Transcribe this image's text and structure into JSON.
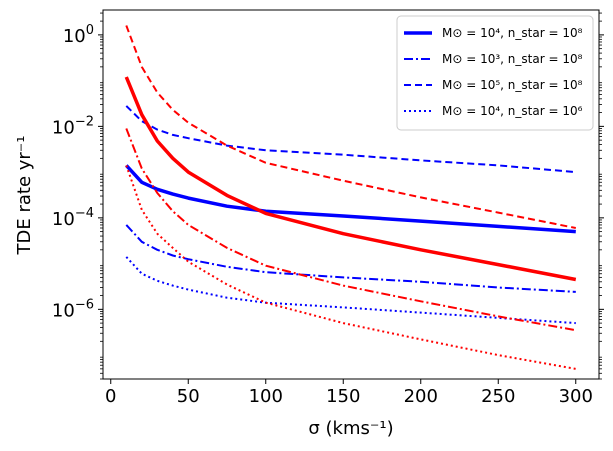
{
  "chart_data": {
    "type": "line",
    "title": "",
    "xlabel": "σ (kms⁻¹)",
    "ylabel": "TDE rate  yr⁻¹",
    "xlim": [
      -5,
      315
    ],
    "ylim": [
      3e-08,
      3.5
    ],
    "yscale": "log",
    "x_ticks": [
      0,
      50,
      100,
      150,
      200,
      250,
      300
    ],
    "x_tick_labels": [
      "0",
      "50",
      "100",
      "150",
      "200",
      "250",
      "300"
    ],
    "y_ticks": [
      1,
      0.01,
      0.0001,
      1e-06
    ],
    "y_tick_labels": [
      {
        "base": "10",
        "exp": "0"
      },
      {
        "base": "10",
        "exp": "−2"
      },
      {
        "base": "10",
        "exp": "−4"
      },
      {
        "base": "10",
        "exp": "−6"
      }
    ],
    "legend_position": "upper-right",
    "series": [
      {
        "name": "M⊙ = 10⁴, n_star = 10⁸",
        "color": "#0000ff",
        "style": "solid",
        "width": 3.5,
        "in_legend": true,
        "x": [
          10,
          20,
          30,
          40,
          50,
          75,
          100,
          150,
          200,
          250,
          300
        ],
        "y": [
          0.0014,
          0.0006,
          0.00042,
          0.00033,
          0.00027,
          0.00018,
          0.00014,
          0.00011,
          8.5e-05,
          6.5e-05,
          5e-05
        ]
      },
      {
        "name": "M⊙ = 10³, n_star = 10⁸",
        "color": "#0000ff",
        "style": "dashdot",
        "width": 2,
        "in_legend": true,
        "x": [
          10,
          20,
          30,
          40,
          50,
          75,
          100,
          150,
          200,
          250,
          300
        ],
        "y": [
          7e-05,
          3e-05,
          2e-05,
          1.5e-05,
          1.25e-05,
          8.5e-06,
          6.5e-06,
          5e-06,
          4e-06,
          3e-06,
          2.4e-06
        ]
      },
      {
        "name": "M⊙ = 10⁵, n_star = 10⁸",
        "color": "#0000ff",
        "style": "dashed",
        "width": 2,
        "in_legend": true,
        "x": [
          10,
          20,
          30,
          40,
          50,
          75,
          100,
          150,
          200,
          250,
          300
        ],
        "y": [
          0.028,
          0.013,
          0.0085,
          0.0065,
          0.0055,
          0.0038,
          0.003,
          0.0024,
          0.0018,
          0.0014,
          0.001
        ]
      },
      {
        "name": "M⊙ = 10⁴, n_star = 10⁶",
        "color": "#0000ff",
        "style": "dotted",
        "width": 2,
        "in_legend": true,
        "x": [
          10,
          20,
          30,
          40,
          50,
          75,
          100,
          150,
          200,
          250,
          300
        ],
        "y": [
          1.4e-05,
          6e-06,
          4.2e-06,
          3.3e-06,
          2.7e-06,
          1.8e-06,
          1.4e-06,
          1.1e-06,
          8.5e-07,
          6.5e-07,
          5e-07
        ]
      },
      {
        "name": "red solid",
        "color": "#ff0000",
        "style": "solid",
        "width": 3.5,
        "in_legend": false,
        "x": [
          10,
          20,
          30,
          40,
          50,
          75,
          100,
          150,
          200,
          250,
          300
        ],
        "y": [
          0.12,
          0.018,
          0.0048,
          0.002,
          0.001,
          0.00031,
          0.000125,
          4.5e-05,
          2e-05,
          9.5e-06,
          4.5e-06
        ]
      },
      {
        "name": "red dashdot",
        "color": "#ff0000",
        "style": "dashdot",
        "width": 2,
        "in_legend": false,
        "x": [
          10,
          20,
          30,
          40,
          50,
          75,
          100,
          150,
          200,
          250,
          300
        ],
        "y": [
          0.009,
          0.0012,
          0.00035,
          0.00014,
          7e-05,
          2.2e-05,
          9e-06,
          3.3e-06,
          1.5e-06,
          7e-07,
          3.5e-07
        ]
      },
      {
        "name": "red dashed",
        "color": "#ff0000",
        "style": "dashed",
        "width": 2,
        "in_legend": false,
        "x": [
          10,
          20,
          30,
          40,
          50,
          75,
          100,
          150,
          200,
          250,
          300
        ],
        "y": [
          1.6,
          0.2,
          0.055,
          0.023,
          0.012,
          0.0038,
          0.0016,
          0.00065,
          0.00028,
          0.00013,
          6e-05
        ]
      },
      {
        "name": "red dotted",
        "color": "#ff0000",
        "style": "dotted",
        "width": 2,
        "in_legend": false,
        "x": [
          10,
          20,
          30,
          40,
          50,
          75,
          100,
          150,
          200,
          250,
          300
        ],
        "y": [
          0.0014,
          0.00015,
          4.5e-05,
          2.2e-05,
          1.1e-05,
          3.5e-06,
          1.4e-06,
          5e-07,
          2.2e-07,
          1e-07,
          5e-08
        ]
      }
    ]
  }
}
